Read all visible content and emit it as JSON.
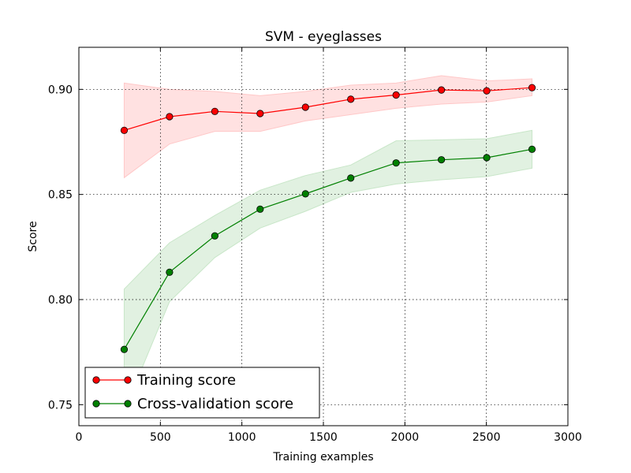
{
  "chart_data": {
    "type": "line",
    "title": "SVM - eyeglasses",
    "xlabel": "Training examples",
    "ylabel": "Score",
    "xlim": [
      0,
      3000
    ],
    "ylim": [
      0.74,
      0.92
    ],
    "xticks": [
      0,
      500,
      1000,
      1500,
      2000,
      2500,
      3000
    ],
    "xtick_labels": [
      "0",
      "500",
      "1000",
      "1500",
      "2000",
      "2500",
      "3000"
    ],
    "yticks": [
      0.75,
      0.8,
      0.85,
      0.9
    ],
    "ytick_labels": [
      "0.75",
      "0.80",
      "0.85",
      "0.90"
    ],
    "grid": true,
    "legend_position": "lower-left",
    "x": [
      278,
      556,
      834,
      1112,
      1390,
      1668,
      1946,
      2224,
      2502,
      2780
    ],
    "series": [
      {
        "name": "Training score",
        "color": "#ff0000",
        "band_color": "#ffc8c8",
        "values": [
          0.8805,
          0.887,
          0.8895,
          0.8885,
          0.8915,
          0.8953,
          0.8973,
          0.8997,
          0.8993,
          0.9008
        ],
        "upper": [
          0.903,
          0.9,
          0.899,
          0.897,
          0.899,
          0.902,
          0.903,
          0.9065,
          0.904,
          0.905
        ],
        "lower": [
          0.858,
          0.874,
          0.88,
          0.88,
          0.885,
          0.888,
          0.891,
          0.893,
          0.894,
          0.897
        ]
      },
      {
        "name": "Cross-validation score",
        "color": "#008000",
        "band_color": "#c8e6c8",
        "values": [
          0.7763,
          0.813,
          0.8303,
          0.843,
          0.8503,
          0.8578,
          0.865,
          0.8665,
          0.8675,
          0.8715
        ],
        "upper": [
          0.805,
          0.827,
          0.84,
          0.852,
          0.859,
          0.864,
          0.8755,
          0.876,
          0.8765,
          0.8805
        ],
        "lower": [
          0.747,
          0.799,
          0.82,
          0.834,
          0.842,
          0.851,
          0.855,
          0.857,
          0.8585,
          0.8625
        ]
      }
    ]
  }
}
